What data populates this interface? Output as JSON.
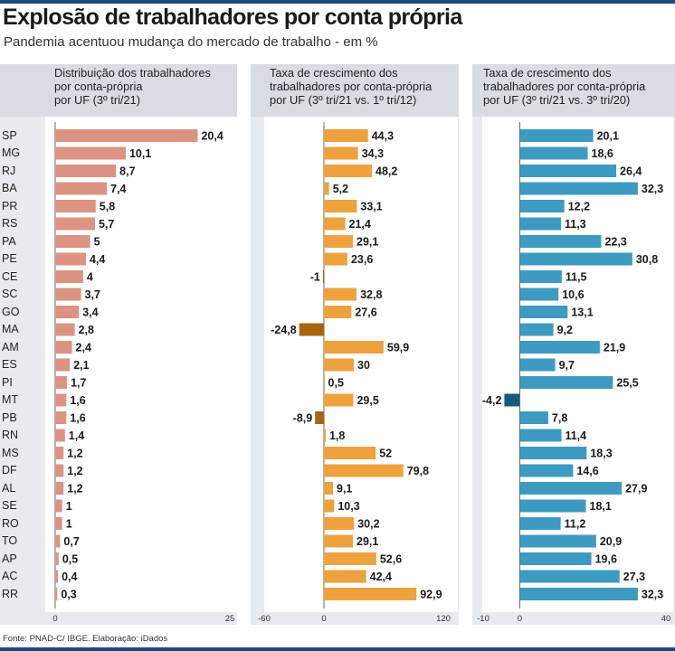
{
  "title": "Explosão de trabalhadores por conta própria",
  "subtitle": "Pandemia acentuou mudança do mercado de trabalho - em %",
  "source": "Fonte: PNAD-C/ IBGE. Elaboração: iDados",
  "colors": {
    "rule": "#1c4a7a",
    "panel_bg": "#e7eaee",
    "panel_head": "#d8dde3"
  },
  "chart_data": [
    {
      "type": "bar",
      "orientation": "horizontal",
      "title": "Distribuição dos trabalhadores por conta-própria por UF (3º tri/21)",
      "title_lines": [
        "Distribuição dos trabalhadores",
        "por conta-própria",
        "por UF (3º tri/21)"
      ],
      "categories": [
        "SP",
        "MG",
        "RJ",
        "BA",
        "PR",
        "RS",
        "PA",
        "PE",
        "CE",
        "SC",
        "GO",
        "MA",
        "AM",
        "ES",
        "PI",
        "MT",
        "PB",
        "RN",
        "MS",
        "DF",
        "AL",
        "SE",
        "RO",
        "TO",
        "AP",
        "AC",
        "RR"
      ],
      "values": [
        20.4,
        10.1,
        8.7,
        7.4,
        5.8,
        5.7,
        5,
        4.4,
        4,
        3.7,
        3.4,
        2.8,
        2.4,
        2.1,
        1.7,
        1.6,
        1.6,
        1.4,
        1.2,
        1.2,
        1.2,
        1,
        1,
        0.7,
        0.5,
        0.4,
        0.3
      ],
      "value_labels": [
        "20,4",
        "10,1",
        "8,7",
        "7,4",
        "5,8",
        "5,7",
        "5",
        "4,4",
        "4",
        "3,7",
        "3,4",
        "2,8",
        "2,4",
        "2,1",
        "1,7",
        "1,6",
        "1,6",
        "1,4",
        "1,2",
        "1,2",
        "1,2",
        "1",
        "1",
        "0,7",
        "0,5",
        "0,4",
        "0,3"
      ],
      "xlim": [
        0,
        25
      ],
      "xticks": [
        0,
        25
      ],
      "xtick_labels": [
        "0",
        "25"
      ],
      "colors": {
        "bar": "#dc9382"
      }
    },
    {
      "type": "bar",
      "orientation": "horizontal",
      "title": "Taxa de crescimento dos trabalhadores por conta-própria por UF (3º tri/21 vs. 1º tri/12)",
      "title_lines": [
        "Taxa de crescimento dos",
        "trabalhadores por conta-própria",
        "por UF (3º tri/21 vs. 1º tri/12)"
      ],
      "categories": [
        "SP",
        "MG",
        "RJ",
        "BA",
        "PR",
        "RS",
        "PA",
        "PE",
        "CE",
        "SC",
        "GO",
        "MA",
        "AM",
        "ES",
        "PI",
        "MT",
        "PB",
        "RN",
        "MS",
        "DF",
        "AL",
        "SE",
        "RO",
        "TO",
        "AP",
        "AC",
        "RR"
      ],
      "values": [
        44.3,
        34.3,
        48.2,
        5.2,
        33.1,
        21.4,
        29.1,
        23.6,
        -1,
        32.8,
        27.6,
        -24.8,
        59.9,
        30,
        0.5,
        29.5,
        -8.9,
        1.8,
        52,
        79.8,
        9.1,
        10.3,
        30.2,
        29.1,
        52.6,
        42.4,
        92.9
      ],
      "value_labels": [
        "44,3",
        "34,3",
        "48,2",
        "5,2",
        "33,1",
        "21,4",
        "29,1",
        "23,6",
        "-1",
        "32,8",
        "27,6",
        "-24,8",
        "59,9",
        "30",
        "0,5",
        "29,5",
        "-8,9",
        "1,8",
        "52",
        "79,8",
        "9,1",
        "10,3",
        "30,2",
        "29,1",
        "52,6",
        "42,4",
        "92,9"
      ],
      "xlim": [
        -60,
        120
      ],
      "xticks": [
        -60,
        0,
        120
      ],
      "xtick_labels": [
        "-60",
        "0",
        "120"
      ],
      "colors": {
        "bar": "#eda23e",
        "negative": "#a8650f"
      }
    },
    {
      "type": "bar",
      "orientation": "horizontal",
      "title": "Taxa de crescimento dos trabalhadores por conta-própria por UF (3º tri/21 vs. 3º tri/20)",
      "title_lines": [
        "Taxa de crescimento dos",
        "trabalhadores por conta-própria",
        "por UF (3º tri/21 vs. 3º tri/20)"
      ],
      "categories": [
        "SP",
        "MG",
        "RJ",
        "BA",
        "PR",
        "RS",
        "PA",
        "PE",
        "CE",
        "SC",
        "GO",
        "MA",
        "AM",
        "ES",
        "PI",
        "MT",
        "PB",
        "RN",
        "MS",
        "DF",
        "AL",
        "SE",
        "RO",
        "TO",
        "AP",
        "AC",
        "RR"
      ],
      "values": [
        20.1,
        18.6,
        26.4,
        32.3,
        12.2,
        11.3,
        22.3,
        30.8,
        11.5,
        10.6,
        13.1,
        9.2,
        21.9,
        9.7,
        25.5,
        -4.2,
        7.8,
        11.4,
        18.3,
        14.6,
        27.9,
        18.1,
        11.2,
        20.9,
        19.6,
        27.3,
        32.3
      ],
      "value_labels": [
        "20,1",
        "18,6",
        "26,4",
        "32,3",
        "12,2",
        "11,3",
        "22,3",
        "30,8",
        "11,5",
        "10,6",
        "13,1",
        "9,2",
        "21,9",
        "9,7",
        "25,5",
        "-4,2",
        "7,8",
        "11,4",
        "18,3",
        "14,6",
        "27,9",
        "18,1",
        "11,2",
        "20,9",
        "19,6",
        "27,3",
        "32,3"
      ],
      "xlim": [
        -10,
        40
      ],
      "xticks": [
        -10,
        0,
        40
      ],
      "xtick_labels": [
        "-10",
        "0",
        "40"
      ],
      "colors": {
        "bar": "#3d9ac0",
        "negative": "#155a80"
      }
    }
  ]
}
